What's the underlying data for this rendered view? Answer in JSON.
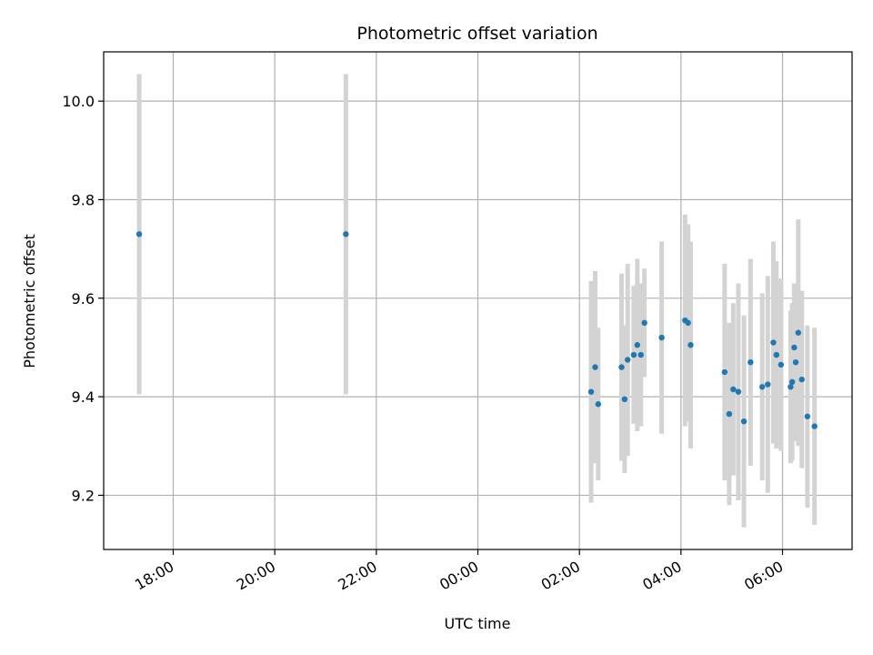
{
  "chart_data": {
    "type": "scatter",
    "title": "Photometric offset variation",
    "xlabel": "UTC time",
    "ylabel": "Photometric offset",
    "x_axis": {
      "kind": "time",
      "range_hours": [
        16.63,
        31.37
      ],
      "ticks": [
        {
          "hour": 18,
          "label": "18:00"
        },
        {
          "hour": 20,
          "label": "20:00"
        },
        {
          "hour": 22,
          "label": "22:00"
        },
        {
          "hour": 24,
          "label": "00:00"
        },
        {
          "hour": 26,
          "label": "02:00"
        },
        {
          "hour": 28,
          "label": "04:00"
        },
        {
          "hour": 30,
          "label": "06:00"
        }
      ]
    },
    "y_axis": {
      "range": [
        9.09,
        10.1
      ],
      "ticks": [
        {
          "value": 9.2,
          "label": "9.2"
        },
        {
          "value": 9.4,
          "label": "9.4"
        },
        {
          "value": 9.6,
          "label": "9.6"
        },
        {
          "value": 9.8,
          "label": "9.8"
        },
        {
          "value": 10.0,
          "label": "10.0"
        }
      ]
    },
    "grid": true,
    "colors": {
      "point": "#1f77b4",
      "errorbar": "#d3d3d3",
      "grid": "#b0b0b0"
    },
    "points": [
      {
        "t": 17.33,
        "y": 9.73,
        "err": 0.325
      },
      {
        "t": 21.4,
        "y": 9.73,
        "err": 0.325
      },
      {
        "t": 26.23,
        "y": 9.41,
        "err": 0.225
      },
      {
        "t": 26.31,
        "y": 9.46,
        "err": 0.195
      },
      {
        "t": 26.37,
        "y": 9.385,
        "err": 0.155
      },
      {
        "t": 26.83,
        "y": 9.46,
        "err": 0.19
      },
      {
        "t": 26.89,
        "y": 9.395,
        "err": 0.15
      },
      {
        "t": 26.95,
        "y": 9.475,
        "err": 0.195
      },
      {
        "t": 27.07,
        "y": 9.485,
        "err": 0.14
      },
      {
        "t": 27.14,
        "y": 9.505,
        "err": 0.175
      },
      {
        "t": 27.21,
        "y": 9.485,
        "err": 0.145
      },
      {
        "t": 27.28,
        "y": 9.55,
        "err": 0.11
      },
      {
        "t": 27.62,
        "y": 9.52,
        "err": 0.195
      },
      {
        "t": 28.08,
        "y": 9.555,
        "err": 0.215
      },
      {
        "t": 28.14,
        "y": 9.55,
        "err": 0.2
      },
      {
        "t": 28.19,
        "y": 9.505,
        "err": 0.21
      },
      {
        "t": 28.86,
        "y": 9.45,
        "err": 0.22
      },
      {
        "t": 28.95,
        "y": 9.365,
        "err": 0.185
      },
      {
        "t": 29.03,
        "y": 9.415,
        "err": 0.175
      },
      {
        "t": 29.13,
        "y": 9.41,
        "err": 0.22
      },
      {
        "t": 29.24,
        "y": 9.35,
        "err": 0.215
      },
      {
        "t": 29.37,
        "y": 9.47,
        "err": 0.21
      },
      {
        "t": 29.6,
        "y": 9.42,
        "err": 0.19
      },
      {
        "t": 29.71,
        "y": 9.425,
        "err": 0.22
      },
      {
        "t": 29.82,
        "y": 9.51,
        "err": 0.205
      },
      {
        "t": 29.88,
        "y": 9.485,
        "err": 0.19
      },
      {
        "t": 29.97,
        "y": 9.465,
        "err": 0.175
      },
      {
        "t": 30.16,
        "y": 9.42,
        "err": 0.155
      },
      {
        "t": 30.19,
        "y": 9.43,
        "err": 0.16
      },
      {
        "t": 30.23,
        "y": 9.5,
        "err": 0.13
      },
      {
        "t": 30.26,
        "y": 9.47,
        "err": 0.16
      },
      {
        "t": 30.31,
        "y": 9.53,
        "err": 0.23
      },
      {
        "t": 30.38,
        "y": 9.435,
        "err": 0.18
      },
      {
        "t": 30.49,
        "y": 9.36,
        "err": 0.185
      },
      {
        "t": 30.63,
        "y": 9.34,
        "err": 0.2
      }
    ]
  }
}
